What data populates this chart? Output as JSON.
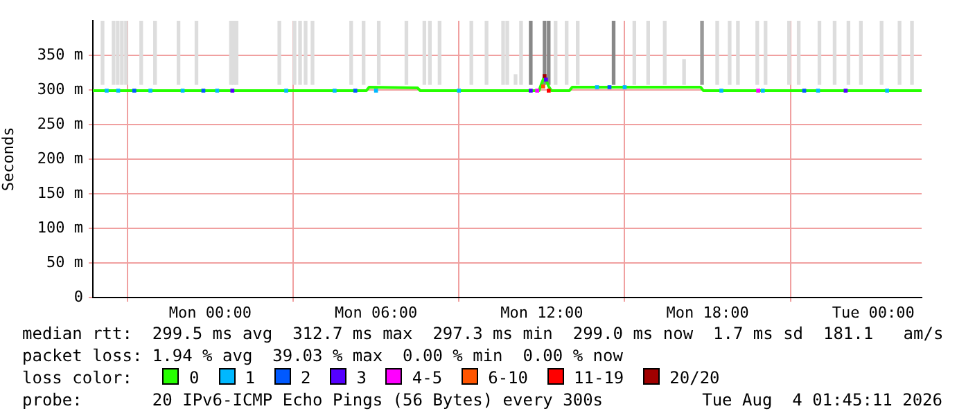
{
  "chart_data": {
    "type": "line",
    "ylabel": "Seconds",
    "xlim": [
      "2026-08-02T19:45",
      "2026-08-04T01:45"
    ],
    "xticks": [
      {
        "value": "2026-08-03T00:00",
        "label": "Mon 00:00"
      },
      {
        "value": "2026-08-03T06:00",
        "label": "Mon 06:00"
      },
      {
        "value": "2026-08-03T12:00",
        "label": "Mon 12:00"
      },
      {
        "value": "2026-08-03T18:00",
        "label": "Mon 18:00"
      },
      {
        "value": "2026-08-04T00:00",
        "label": "Tue 00:00"
      }
    ],
    "ylim": [
      0,
      400
    ],
    "yticks": [
      0,
      {
        "value": 50,
        "label": "50 m"
      },
      {
        "value": 100,
        "label": "100 m"
      },
      {
        "value": 150,
        "label": "150 m"
      },
      {
        "value": 200,
        "label": "200 m"
      },
      {
        "value": 250,
        "label": "250 m"
      },
      {
        "value": 300,
        "label": "300 m"
      },
      {
        "value": 350,
        "label": "350 m"
      }
    ],
    "grid": true,
    "legend": "bottom",
    "legend_title": "loss color:",
    "series": [
      {
        "type": "bar",
        "x": [
          "2026-08-02T20:06",
          "2026-08-02T20:30",
          "2026-08-02T20:39",
          "2026-08-02T20:48",
          "2026-08-02T20:57",
          "2026-08-02T21:30",
          "2026-08-02T22:00",
          "2026-08-02T22:51",
          "2026-08-02T23:30",
          "2026-08-03T00:45",
          "2026-08-03T00:51",
          "2026-08-03T00:57",
          "2026-08-03T02:30",
          "2026-08-03T03:03",
          "2026-08-03T03:15",
          "2026-08-03T03:27",
          "2026-08-03T03:42",
          "2026-08-03T05:06",
          "2026-08-03T05:33",
          "2026-08-03T06:06",
          "2026-08-03T07:06",
          "2026-08-03T07:45",
          "2026-08-03T07:57",
          "2026-08-03T08:18",
          "2026-08-03T09:27",
          "2026-08-03T10:00",
          "2026-08-03T10:36",
          "2026-08-03T10:45",
          "2026-08-03T11:03",
          "2026-08-03T11:15",
          "2026-08-03T11:36",
          "2026-08-03T12:06",
          "2026-08-03T12:15",
          "2026-08-03T12:30",
          "2026-08-03T12:54",
          "2026-08-03T13:18",
          "2026-08-03T14:36",
          "2026-08-03T15:21",
          "2026-08-03T15:51",
          "2026-08-03T16:27",
          "2026-08-03T17:09",
          "2026-08-03T17:48",
          "2026-08-03T18:21",
          "2026-08-03T18:48",
          "2026-08-03T19:06",
          "2026-08-03T19:48",
          "2026-08-03T20:06",
          "2026-08-03T20:57",
          "2026-08-03T21:18",
          "2026-08-03T22:03",
          "2026-08-03T22:36",
          "2026-08-03T23:06",
          "2026-08-03T23:33",
          "2026-08-04T00:18",
          "2026-08-04T00:57",
          "2026-08-04T01:24"
        ],
        "values": [
          92,
          92,
          92,
          92,
          92,
          92,
          92,
          92,
          92,
          92,
          92,
          92,
          92,
          92,
          92,
          92,
          92,
          92,
          92,
          92,
          92,
          92,
          92,
          92,
          92,
          92,
          92,
          92,
          14,
          92,
          92,
          92,
          92,
          92,
          92,
          92,
          92,
          92,
          92,
          92,
          36,
          92,
          92,
          92,
          92,
          92,
          92,
          92,
          92,
          92,
          92,
          92,
          92,
          92,
          92,
          92
        ],
        "base": [
          308,
          308,
          308,
          308,
          308,
          308,
          308,
          308,
          308,
          308,
          308,
          308,
          308,
          308,
          308,
          308,
          308,
          308,
          308,
          308,
          308,
          308,
          308,
          308,
          308,
          308,
          308,
          308,
          308,
          308,
          308,
          308,
          308,
          308,
          308,
          308,
          308,
          308,
          308,
          308,
          308,
          308,
          308,
          308,
          308,
          308,
          308,
          308,
          308,
          308,
          308,
          308,
          308,
          308,
          308,
          308
        ],
        "colors": [
          "#dddddd",
          "#dddddd",
          "#dddddd",
          "#dddddd",
          "#dddddd",
          "#dddddd",
          "#dddddd",
          "#dddddd",
          "#dddddd",
          "#dddddd",
          "#dddddd",
          "#dddddd",
          "#dddddd",
          "#dddddd",
          "#dddddd",
          "#dddddd",
          "#dddddd",
          "#dddddd",
          "#dddddd",
          "#dddddd",
          "#dddddd",
          "#dddddd",
          "#dddddd",
          "#dddddd",
          "#dddddd",
          "#dddddd",
          "#dddddd",
          "#dddddd",
          "#dddddd",
          "#dddddd",
          "#888888",
          "#888888",
          "#888888",
          "#dddddd",
          "#dddddd",
          "#dddddd",
          "#888888",
          "#dddddd",
          "#dddddd",
          "#dddddd",
          "#dddddd",
          "#999999",
          "#dddddd",
          "#dddddd",
          "#dddddd",
          "#dddddd",
          "#dddddd",
          "#dddddd",
          "#dddddd",
          "#dddddd",
          "#dddddd",
          "#dddddd",
          "#dddddd",
          "#dddddd",
          "#dddddd",
          "#dddddd"
        ]
      },
      {
        "name": "0",
        "color": "#26ff00",
        "x": [
          "2026-08-02T19:45",
          "2026-08-03T05:39",
          "2026-08-03T05:45",
          "2026-08-03T07:30",
          "2026-08-03T07:36",
          "2026-08-03T11:54",
          "2026-08-03T12:00",
          "2026-08-03T12:06",
          "2026-08-03T12:15",
          "2026-08-03T12:21",
          "2026-08-03T13:00",
          "2026-08-03T13:06",
          "2026-08-03T17:45",
          "2026-08-03T17:51",
          "2026-08-04T01:45"
        ],
        "values": [
          299,
          299,
          304,
          303,
          299,
          299,
          310,
          320,
          305,
          299,
          299,
          304,
          304,
          299,
          299
        ]
      },
      {
        "type": "scatter",
        "name": "1",
        "color": "#00b8ff",
        "marker": "square",
        "x": [
          "2026-08-02T20:15",
          "2026-08-02T20:40",
          "2026-08-02T21:50",
          "2026-08-02T23:00",
          "2026-08-03T00:15",
          "2026-08-03T02:45",
          "2026-08-03T04:30",
          "2026-08-03T06:00",
          "2026-08-03T09:00",
          "2026-08-03T14:00",
          "2026-08-03T15:00",
          "2026-08-03T18:30",
          "2026-08-03T20:00",
          "2026-08-03T22:00",
          "2026-08-04T00:30"
        ],
        "values": [
          299,
          299,
          299,
          299,
          299,
          299,
          299,
          299,
          299,
          304,
          304,
          299,
          299,
          299,
          299
        ]
      },
      {
        "type": "scatter",
        "name": "2",
        "color": "#0059ff",
        "marker": "square",
        "x": [
          "2026-08-02T21:15",
          "2026-08-02T23:45",
          "2026-08-03T05:15",
          "2026-08-03T14:27",
          "2026-08-03T21:30"
        ],
        "values": [
          299,
          299,
          299,
          304,
          299
        ]
      },
      {
        "type": "scatter",
        "name": "3",
        "color": "#5500ff",
        "marker": "square",
        "x": [
          "2026-08-03T00:48",
          "2026-08-03T11:36",
          "2026-08-03T12:09",
          "2026-08-03T23:00"
        ],
        "values": [
          299,
          299,
          315,
          299
        ]
      },
      {
        "type": "scatter",
        "name": "4-5",
        "color": "#ff00ff",
        "marker": "square",
        "x": [
          "2026-08-03T11:50",
          "2026-08-03T19:50"
        ],
        "values": [
          299,
          299
        ]
      },
      {
        "type": "scatter",
        "name": "6-10",
        "color": "#ff5500",
        "marker": "square",
        "x": [
          "2026-08-03T12:03"
        ],
        "values": [
          305
        ]
      },
      {
        "type": "scatter",
        "name": "11-19",
        "color": "#ff0000",
        "marker": "square",
        "x": [
          "2026-08-03T12:15"
        ],
        "values": [
          299
        ]
      },
      {
        "type": "scatter",
        "name": "20/20",
        "color": "#a10000",
        "marker": "square",
        "x": [
          "2026-08-03T12:06"
        ],
        "values": [
          320
        ]
      }
    ],
    "annotations": [
      "median rtt:  299.5 ms avg  312.7 ms max  297.3 ms min  299.0 ms now  1.7 ms sd  181.1   am/s",
      "packet loss: 1.94 % avg  39.03 % max  0.00 % min  0.00 % now",
      "probe:       20 IPv6-ICMP Echo Pings (56 Bytes) every 300s",
      "Tue Aug  4 01:45:11 2026"
    ]
  }
}
